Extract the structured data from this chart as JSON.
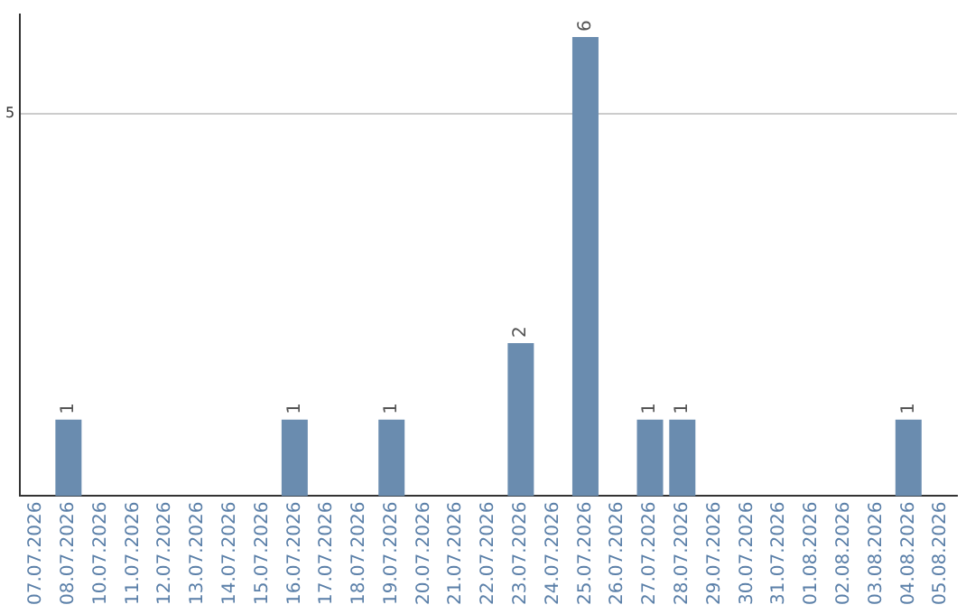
{
  "chart_data": {
    "type": "bar",
    "categories": [
      "07.07.2026",
      "08.07.2026",
      "10.07.2026",
      "11.07.2026",
      "12.07.2026",
      "13.07.2026",
      "14.07.2026",
      "15.07.2026",
      "16.07.2026",
      "17.07.2026",
      "18.07.2026",
      "19.07.2026",
      "20.07.2026",
      "21.07.2026",
      "22.07.2026",
      "23.07.2026",
      "24.07.2026",
      "25.07.2026",
      "26.07.2026",
      "27.07.2026",
      "28.07.2026",
      "29.07.2026",
      "30.07.2026",
      "31.07.2026",
      "01.08.2026",
      "02.08.2026",
      "03.08.2026",
      "04.08.2026",
      "05.08.2026"
    ],
    "values": [
      0,
      1,
      0,
      0,
      0,
      0,
      0,
      0,
      1,
      0,
      0,
      1,
      0,
      0,
      0,
      2,
      0,
      6,
      0,
      1,
      1,
      0,
      0,
      0,
      0,
      0,
      0,
      1,
      0
    ],
    "value_labels": [
      null,
      "1",
      null,
      null,
      null,
      null,
      null,
      null,
      "1",
      null,
      null,
      "1",
      null,
      null,
      null,
      "2",
      null,
      "6",
      null,
      "1",
      "1",
      null,
      null,
      null,
      null,
      null,
      null,
      "1",
      null
    ],
    "color": "#6a8caf",
    "ylim": [
      0,
      6.3
    ],
    "yticks": [
      5
    ],
    "grid": "y",
    "legend": false
  }
}
